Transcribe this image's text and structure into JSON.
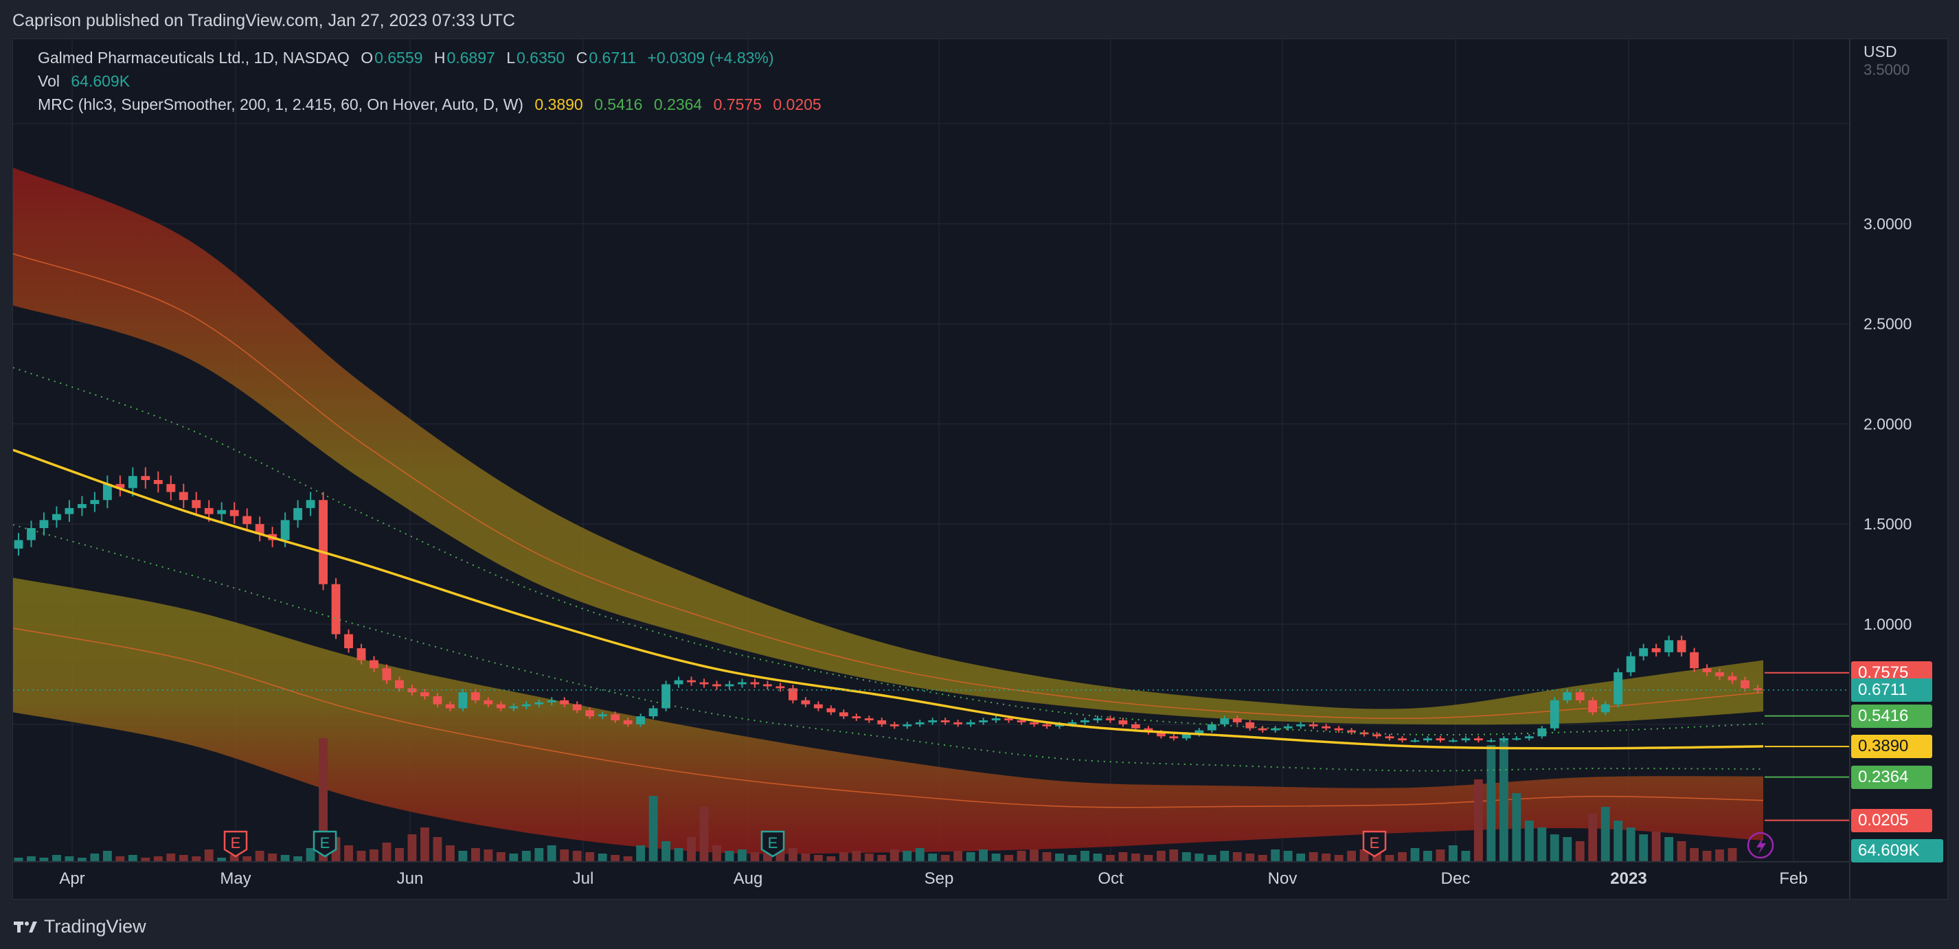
{
  "header": {
    "published": "Caprison published on TradingView.com, Jan 27, 2023 07:33 UTC"
  },
  "legend": {
    "symbol": "Galmed Pharmaceuticals Ltd., 1D, NASDAQ",
    "o_label": "O",
    "o_value": "0.6559",
    "h_label": "H",
    "h_value": "0.6897",
    "l_label": "L",
    "l_value": "0.6350",
    "c_label": "C",
    "c_value": "0.6711",
    "change": "+0.0309 (+4.83%)",
    "vol_label": "Vol",
    "vol_value": "64.609K",
    "mrc_label": "MRC (hlc3, SuperSmoother, 200, 1, 2.415, 60, On Hover, Auto, D, W)",
    "mrc_values": [
      "0.3890",
      "0.5416",
      "0.2364",
      "0.7575",
      "0.0205"
    ]
  },
  "footer": {
    "brand": "TradingView"
  },
  "colors": {
    "up": "#26a69a",
    "down": "#ef5350",
    "mean": "#f7c823",
    "band_inner": "#8a7a1a",
    "band_outer": "#8b1a1a",
    "bg": "#131722"
  },
  "chart_data": {
    "type": "candlestick",
    "currency": "USD",
    "y_ticks": [
      "3.0000",
      "2.5000",
      "2.0000",
      "1.5000",
      "1.0000"
    ],
    "y_top_partial": "3.5000",
    "x_ticks": [
      "Apr",
      "May",
      "Jun",
      "Jul",
      "Aug",
      "Sep",
      "Oct",
      "Nov",
      "Dec",
      "2023",
      "Feb"
    ],
    "ylim": [
      0.0,
      3.5
    ],
    "price_tags": [
      {
        "label": "0.7575",
        "color": "#ef5350"
      },
      {
        "label": "0.6711",
        "color": "#26a69a"
      },
      {
        "label": "0.5416",
        "color": "#4caf50"
      },
      {
        "label": "0.3890",
        "color": "#f7c823"
      },
      {
        "label": "0.2364",
        "color": "#4caf50"
      },
      {
        "label": "0.0205",
        "color": "#ef5350"
      },
      {
        "label": "64.609K",
        "color": "#26a69a"
      }
    ],
    "earnings_markers": [
      "E",
      "E",
      "E",
      "E"
    ],
    "series_close": [
      1.42,
      1.48,
      1.52,
      1.55,
      1.58,
      1.6,
      1.62,
      1.7,
      1.68,
      1.74,
      1.72,
      1.7,
      1.66,
      1.62,
      1.58,
      1.55,
      1.57,
      1.54,
      1.5,
      1.45,
      1.42,
      1.52,
      1.58,
      1.62,
      1.2,
      0.95,
      0.88,
      0.82,
      0.78,
      0.72,
      0.68,
      0.66,
      0.64,
      0.6,
      0.58,
      0.66,
      0.62,
      0.6,
      0.58,
      0.59,
      0.6,
      0.61,
      0.62,
      0.6,
      0.57,
      0.54,
      0.55,
      0.52,
      0.5,
      0.54,
      0.58,
      0.7,
      0.72,
      0.71,
      0.7,
      0.69,
      0.7,
      0.71,
      0.7,
      0.69,
      0.68,
      0.62,
      0.6,
      0.58,
      0.56,
      0.54,
      0.53,
      0.52,
      0.5,
      0.49,
      0.5,
      0.51,
      0.52,
      0.51,
      0.5,
      0.51,
      0.52,
      0.53,
      0.52,
      0.51,
      0.5,
      0.49,
      0.5,
      0.51,
      0.52,
      0.53,
      0.52,
      0.5,
      0.48,
      0.46,
      0.44,
      0.43,
      0.45,
      0.47,
      0.5,
      0.53,
      0.51,
      0.48,
      0.47,
      0.48,
      0.49,
      0.5,
      0.49,
      0.48,
      0.47,
      0.46,
      0.45,
      0.44,
      0.43,
      0.42,
      0.42,
      0.43,
      0.42,
      0.42,
      0.43,
      0.42,
      0.42,
      0.43,
      0.43,
      0.44,
      0.48,
      0.62,
      0.66,
      0.62,
      0.56,
      0.6,
      0.76,
      0.84,
      0.88,
      0.86,
      0.92,
      0.86,
      0.78,
      0.76,
      0.74,
      0.72,
      0.68,
      0.67
    ],
    "volume": [
      3,
      4,
      3,
      5,
      4,
      3,
      6,
      8,
      4,
      5,
      3,
      4,
      6,
      5,
      4,
      9,
      3,
      5,
      4,
      8,
      6,
      5,
      4,
      10,
      90,
      18,
      12,
      8,
      9,
      14,
      10,
      20,
      25,
      18,
      12,
      8,
      10,
      9,
      7,
      6,
      8,
      10,
      12,
      9,
      8,
      7,
      6,
      5,
      4,
      12,
      48,
      15,
      10,
      18,
      40,
      12,
      8,
      9,
      7,
      6,
      8,
      10,
      6,
      5,
      4,
      7,
      8,
      6,
      5,
      9,
      8,
      10,
      6,
      5,
      8,
      7,
      9,
      6,
      5,
      8,
      9,
      7,
      6,
      5,
      8,
      6,
      5,
      7,
      6,
      5,
      8,
      9,
      7,
      6,
      5,
      8,
      7,
      6,
      5,
      9,
      8,
      6,
      7,
      6,
      5,
      8,
      9,
      6,
      5,
      7,
      10,
      8,
      9,
      12,
      8,
      60,
      85,
      90,
      50,
      30,
      25,
      20,
      18,
      15,
      35,
      40,
      30,
      25,
      20,
      22,
      18,
      15,
      10,
      8,
      9,
      10
    ],
    "mean_line": [
      1.87,
      1.56,
      1.3,
      1.02,
      0.78,
      0.64,
      0.5,
      0.44,
      0.39,
      0.38,
      0.39
    ],
    "upper_outer": [
      3.28,
      2.92,
      2.2,
      1.6,
      1.2,
      0.9,
      0.72,
      0.62,
      0.58,
      0.7,
      0.82
    ],
    "upper_inner": [
      2.85,
      2.55,
      1.9,
      1.35,
      1.02,
      0.78,
      0.64,
      0.56,
      0.53,
      0.58,
      0.66
    ],
    "lower_inner": [
      0.98,
      0.82,
      0.56,
      0.38,
      0.24,
      0.15,
      0.09,
      0.09,
      0.1,
      0.14,
      0.12
    ],
    "lower_outer": [
      0.56,
      0.4,
      0.12,
      -0.05,
      -0.14,
      -0.14,
      -0.12,
      -0.08,
      -0.04,
      -0.02,
      -0.08
    ]
  }
}
